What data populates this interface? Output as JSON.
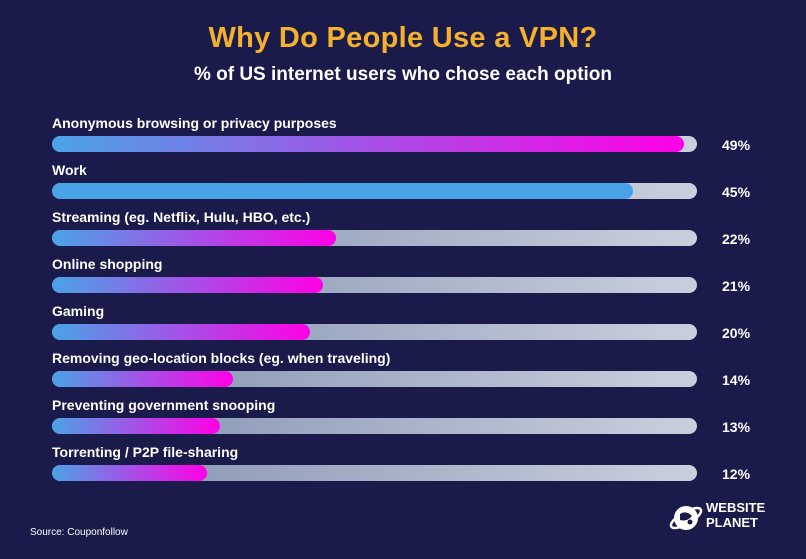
{
  "header": {
    "title": "Why Do People Use a VPN?",
    "subtitle": "% of US internet users who chose each option"
  },
  "chart_data": {
    "type": "bar",
    "orientation": "horizontal",
    "categories": [
      "Anonymous browsing or privacy purposes",
      "Work",
      "Streaming (eg. Netflix, Hulu, HBO, etc.)",
      "Online shopping",
      "Gaming",
      "Removing geo-location blocks (eg. when traveling)",
      "Preventing government snooping",
      "Torrenting / P2P file-sharing"
    ],
    "values": [
      49,
      45,
      22,
      21,
      20,
      14,
      13,
      12
    ],
    "value_labels": [
      "49%",
      "45%",
      "22%",
      "21%",
      "20%",
      "14%",
      "13%",
      "12%"
    ],
    "xlim": [
      0,
      50
    ],
    "title": "Why Do People Use a VPN?",
    "subtitle": "% of US internet users who chose each option",
    "grid": false,
    "legend": "none",
    "colors": {
      "gradient_start": "#4aa3e6",
      "gradient_end": "#ff00e6",
      "track": "#c9cfdc",
      "background": "#1a1a4b",
      "title": "#f5b12b"
    }
  },
  "footer": {
    "source": "Source: Couponfollow",
    "logo_line1": "WEBSITE",
    "logo_line2": "PLANET",
    "logo_icon": "globe-icon"
  }
}
